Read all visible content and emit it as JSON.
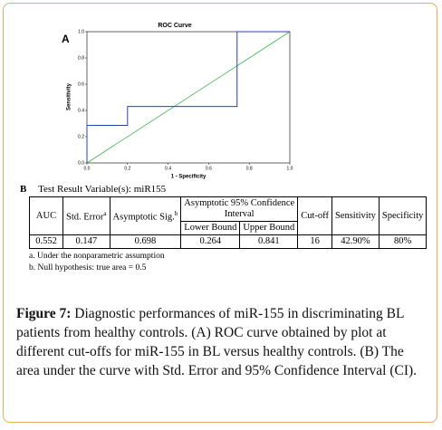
{
  "panel_a": "A",
  "chart_data": {
    "type": "line",
    "title": "ROC Curve",
    "x_label": "1 - Specificity",
    "y_label": "Sensitivity",
    "x": [
      0,
      0,
      0.2,
      0.2,
      0.74,
      0.74,
      1
    ],
    "values": [
      0,
      0.286,
      0.286,
      0.43,
      0.43,
      1,
      1
    ],
    "color": "#2b3fb5",
    "reference_color": "#3cb34a",
    "xlim": [
      0,
      1
    ],
    "ylim": [
      0,
      1
    ],
    "xticks": [
      {
        "value": 0,
        "label": "0.0"
      },
      0.2,
      0.4,
      0.6,
      0.8,
      {
        "value": 1,
        "label": "1.0"
      }
    ],
    "yticks": [
      {
        "value": 0,
        "label": "0.0"
      },
      0.2,
      0.4,
      0.6,
      0.8,
      {
        "value": 1,
        "label": "1.0"
      }
    ]
  },
  "panel_b": "B",
  "table": {
    "title": "Test Result Variable(s):  miR155",
    "headers": [
      {
        "text": "AUC"
      },
      {
        "text": "Std. Error",
        "sup": "a"
      },
      {
        "text": "Asymptotic Sig.",
        "sup": "b"
      },
      {
        "text": "Asymptotic 95% Confidence Interval"
      },
      {
        "text": "Lower Bound"
      },
      {
        "text": "Upper Bound"
      },
      {
        "text": "Cut-off"
      },
      {
        "text": "Sensitivity"
      },
      {
        "text": "Specificity"
      }
    ],
    "rows": [
      [
        "0.552",
        "0.147",
        "0.698",
        "0.264",
        "0.841",
        "16",
        "42.90%",
        "80%"
      ]
    ]
  },
  "footnotes": [
    "a. Under the nonparametric assumption",
    "b. Null hypothesis: true area = 0.5"
  ],
  "caption": {
    "label": "Figure 7:",
    "text": " Diagnostic performances of miR-155 in discriminating BL patients from healthy controls. (A) ROC curve obtained by plot at different cut-offs for miR-155 in BL versus healthy controls. (B) The area under the curve with Std. Error and 95% Confidence Interval (CI)."
  }
}
